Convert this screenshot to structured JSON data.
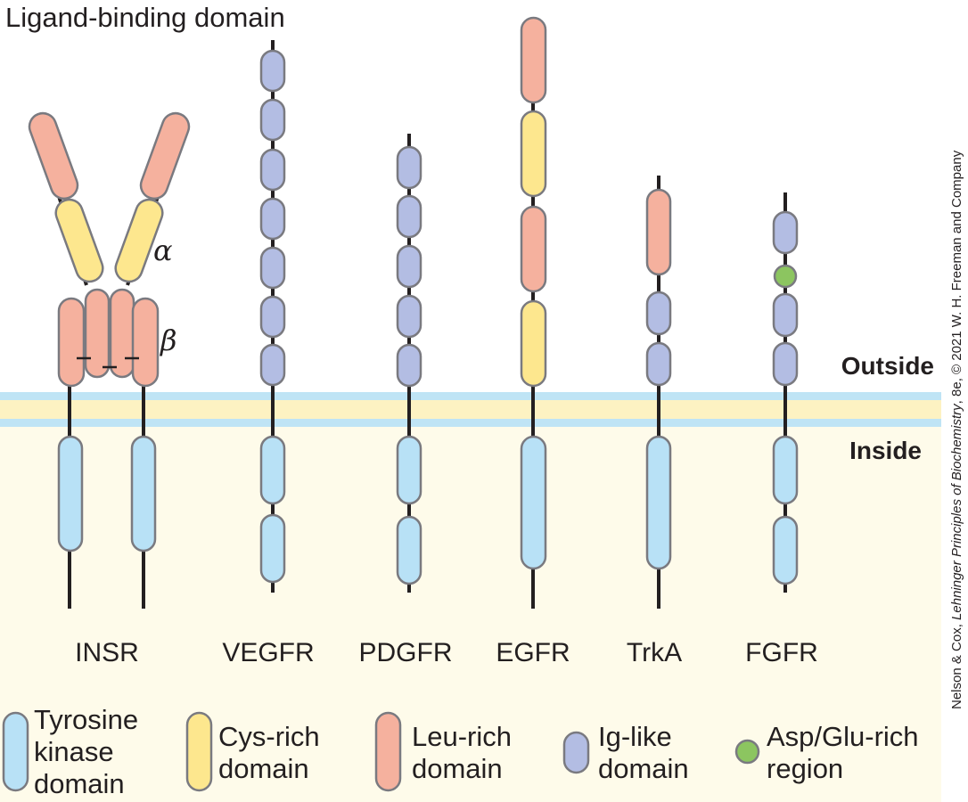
{
  "title": "Ligand-binding domain",
  "regions": {
    "outside": "Outside",
    "inside": "Inside"
  },
  "subunits": {
    "alpha": "α",
    "beta": "β"
  },
  "receptors": [
    {
      "id": "insr",
      "label": "INSR"
    },
    {
      "id": "vegfr",
      "label": "VEGFR"
    },
    {
      "id": "pdgfr",
      "label": "PDGFR"
    },
    {
      "id": "egfr",
      "label": "EGFR"
    },
    {
      "id": "trka",
      "label": "TrkA"
    },
    {
      "id": "fgfr",
      "label": "FGFR"
    }
  ],
  "legend": [
    {
      "id": "tyrosine-kinase",
      "lines": [
        "Tyrosine",
        "kinase",
        "domain"
      ],
      "color": "#b8e1f6"
    },
    {
      "id": "cys-rich",
      "lines": [
        "Cys-rich",
        "domain"
      ],
      "color": "#fde78e"
    },
    {
      "id": "leu-rich",
      "lines": [
        "Leu-rich",
        "domain"
      ],
      "color": "#f5b19e"
    },
    {
      "id": "ig-like",
      "lines": [
        "Ig-like",
        "domain"
      ],
      "color": "#b3bde3"
    },
    {
      "id": "asp-glu-rich",
      "lines": [
        "Asp/Glu-rich",
        "region"
      ],
      "color": "#8cc560"
    }
  ],
  "colors": {
    "membrane_line": "#bfe4f5",
    "membrane_core": "#fdf2c2",
    "cytoplasm": "#fefbea",
    "outline": "#7a7a80",
    "backbone": "#231f20"
  },
  "credit": {
    "prefix": "Nelson & Cox, ",
    "book": "Lehninger Principles of Biochemistry",
    "suffix": ", 8e, © 2021 W. H. Freeman and Company"
  }
}
